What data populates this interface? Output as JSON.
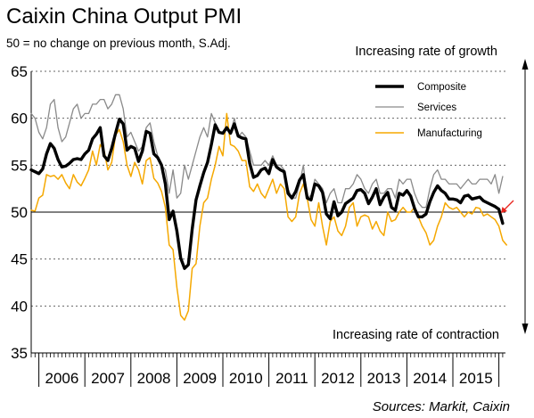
{
  "chart_data": {
    "type": "line",
    "title": "Caixin China Output PMI",
    "subtitle": "50 = no change on previous month, S.Adj.",
    "annotation_top": "Increasing rate of growth",
    "annotation_bottom": "Increasing rate of contraction",
    "source": "Sources: Markit, Caixin",
    "ylim": [
      35,
      65
    ],
    "yticks": [
      "35",
      "40",
      "45",
      "50",
      "55",
      "60",
      "65"
    ],
    "xticks": [
      "2006",
      "2007",
      "2008",
      "2009",
      "2010",
      "2011",
      "2012",
      "2013",
      "2014",
      "2015"
    ],
    "reference_line": 50,
    "dashed_gridlines": [
      55,
      60,
      65,
      45,
      40
    ],
    "legend_position": "top-right",
    "colors": {
      "composite": "#000000",
      "services": "#8a8a8a",
      "manufacturing": "#f5a800",
      "arrow": "#e8261f"
    },
    "series": [
      {
        "name": "Composite",
        "start": "2005-11",
        "values": [
          54.5,
          54.3,
          54.1,
          54.6,
          56.2,
          57.3,
          56.8,
          55.6,
          54.8,
          54.9,
          55.2,
          55.6,
          55.7,
          55.6,
          56.2,
          56.6,
          57.8,
          58.3,
          59.0,
          56.0,
          55.5,
          56.8,
          58.4,
          59.9,
          59.4,
          56.6,
          57.0,
          56.8,
          55.4,
          56.5,
          58.6,
          58.4,
          56.2,
          55.8,
          55.0,
          53.0,
          49.2,
          50.1,
          48.0,
          45.1,
          44.0,
          44.4,
          48.2,
          51.3,
          52.8,
          54.2,
          55.3,
          57.2,
          59.3,
          58.5,
          58.4,
          59.0,
          58.4,
          59.4,
          58.1,
          57.9,
          57.8,
          55.2,
          53.7,
          53.9,
          54.5,
          54.7,
          54.1,
          55.6,
          54.8,
          54.5,
          54.3,
          52.0,
          51.5,
          52.2,
          53.4,
          54.0,
          51.5,
          51.3,
          53.0,
          52.8,
          52.1,
          49.8,
          49.3,
          51.1,
          49.6,
          50.0,
          50.9,
          51.2,
          51.5,
          52.3,
          52.4,
          52.0,
          50.9,
          51.6,
          52.5,
          50.8,
          51.6,
          52.1,
          50.5,
          50.2,
          52.0,
          51.8,
          52.3,
          51.7,
          50.4,
          49.5,
          49.5,
          49.8,
          51.1,
          52.1,
          52.8,
          52.3,
          52.0,
          51.4,
          51.4,
          51.3,
          51.0,
          51.7,
          51.8,
          51.4,
          51.5,
          51.6,
          51.2,
          51.0,
          50.8,
          50.6,
          50.3,
          48.8
        ]
      },
      {
        "name": "Services",
        "start": "2005-11",
        "values": [
          60.5,
          60.0,
          58.5,
          57.8,
          59.0,
          61.5,
          62.0,
          59.0,
          57.5,
          58.0,
          59.5,
          61.0,
          61.5,
          60.0,
          60.5,
          60.5,
          61.5,
          61.5,
          62.0,
          62.0,
          61.0,
          61.5,
          62.5,
          62.5,
          61.0,
          58.0,
          58.5,
          57.5,
          56.5,
          57.0,
          59.0,
          59.5,
          57.5,
          56.0,
          55.0,
          54.5,
          52.0,
          54.5,
          51.5,
          52.0,
          55.0,
          53.5,
          55.0,
          56.5,
          58.0,
          59.0,
          58.0,
          60.5,
          59.5,
          58.5,
          58.5,
          59.0,
          58.5,
          60.0,
          58.0,
          58.5,
          58.0,
          56.5,
          55.0,
          55.0,
          55.0,
          55.5,
          55.0,
          56.0,
          55.0,
          55.0,
          54.5,
          52.5,
          51.5,
          51.5,
          53.0,
          55.0,
          51.5,
          51.8,
          53.5,
          53.0,
          52.5,
          51.0,
          52.0,
          52.5,
          51.0,
          51.0,
          52.5,
          52.5,
          53.0,
          54.0,
          53.5,
          52.5,
          52.0,
          53.0,
          53.5,
          52.0,
          52.0,
          52.5,
          52.5,
          51.5,
          53.5,
          53.0,
          53.5,
          53.5,
          52.0,
          51.0,
          50.5,
          50.5,
          52.5,
          54.0,
          54.5,
          53.5,
          53.5,
          53.0,
          53.0,
          53.0,
          52.5,
          53.0,
          53.5,
          53.0,
          53.0,
          53.5,
          53.5,
          53.5,
          53.0,
          54.0,
          52.0,
          53.8
        ]
      },
      {
        "name": "Manufacturing",
        "start": "2005-11",
        "values": [
          50.2,
          50.1,
          51.5,
          51.8,
          54.0,
          53.8,
          53.9,
          53.5,
          54.0,
          53.1,
          52.5,
          54.0,
          53.2,
          52.8,
          53.6,
          54.5,
          56.5,
          55.0,
          57.2,
          56.6,
          54.5,
          55.3,
          58.2,
          58.8,
          57.5,
          55.0,
          53.8,
          55.3,
          54.5,
          53.0,
          55.5,
          55.8,
          53.6,
          53.1,
          52.2,
          50.5,
          46.5,
          46.0,
          42.0,
          39.0,
          38.5,
          39.5,
          44.0,
          44.5,
          48.5,
          51.0,
          51.5,
          53.5,
          55.0,
          57.0,
          56.0,
          60.5,
          57.2,
          57.0,
          56.5,
          55.5,
          55.5,
          52.7,
          52.2,
          53.0,
          52.0,
          51.5,
          52.5,
          53.5,
          52.0,
          53.0,
          52.5,
          49.5,
          49.0,
          49.5,
          52.0,
          53.0,
          51.5,
          49.2,
          48.5,
          51.0,
          48.5,
          46.5,
          49.0,
          49.5,
          48.0,
          47.5,
          48.5,
          50.5,
          51.0,
          48.5,
          49.5,
          49.7,
          49.5,
          48.2,
          49.0,
          48.0,
          47.5,
          50.0,
          49.0,
          49.2,
          50.0,
          50.5,
          50.0,
          50.0,
          50.5,
          49.5,
          48.5,
          47.8,
          46.5,
          47.0,
          48.5,
          49.5,
          51.0,
          50.5,
          50.3,
          50.5,
          50.0,
          49.5,
          50.0,
          49.8,
          50.5,
          50.4,
          49.6,
          49.8,
          49.5,
          49.2,
          48.5,
          47.0,
          46.5
        ]
      }
    ]
  }
}
